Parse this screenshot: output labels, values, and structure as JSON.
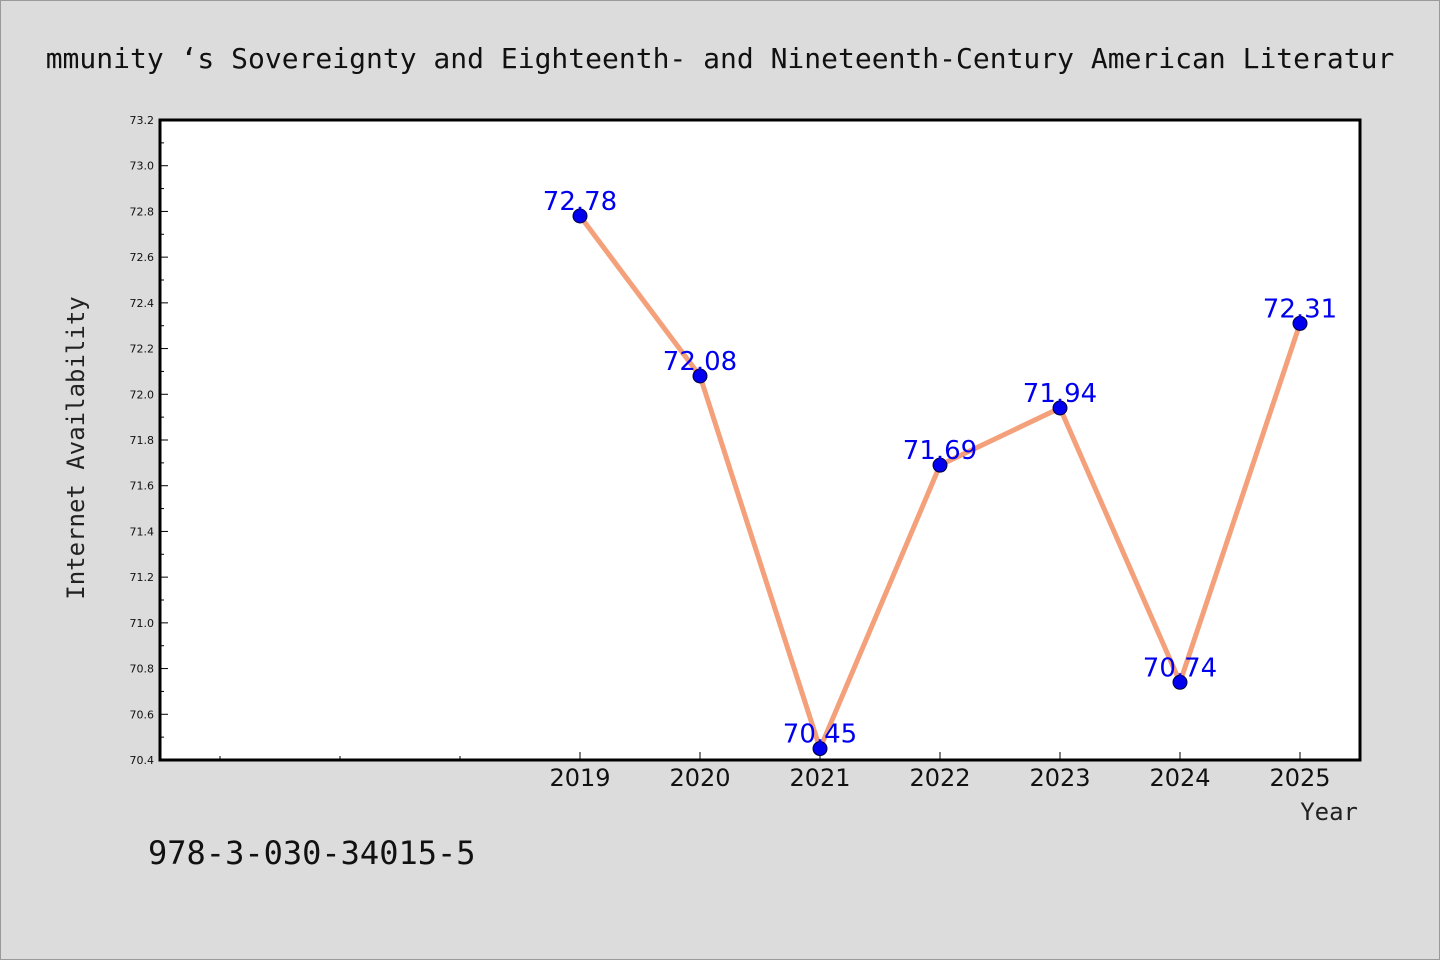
{
  "footer_text": "978-3-030-34015-5",
  "chart_data": {
    "type": "line",
    "title": "mmunity ‘s Sovereignty and Eighteenth- and Nineteenth-Century American Literatur",
    "xlabel": "Year",
    "ylabel": "Internet Availability",
    "x": [
      2019,
      2020,
      2021,
      2022,
      2023,
      2024,
      2025
    ],
    "series": [
      {
        "values": [
          72.78,
          72.08,
          70.45,
          71.69,
          71.94,
          70.74,
          72.31
        ]
      }
    ],
    "data_labels": [
      "72.78",
      "72.08",
      "70.45",
      "71.69",
      "71.94",
      "70.74",
      "72.31"
    ],
    "xticklabels": [
      "2019",
      "2020",
      "2021",
      "2022",
      "2023",
      "2024",
      "2025"
    ],
    "yticklabels": [
      "70.4",
      "70.6",
      "70.8",
      "71.0",
      "71.2",
      "71.4",
      "71.6",
      "71.8",
      "72.0",
      "72.2",
      "72.4",
      "72.6",
      "72.8",
      "73.0",
      "73.2"
    ],
    "ylim": [
      70.4,
      73.2
    ],
    "xlim": [
      2015.5,
      2025.5
    ],
    "grid": false,
    "colors": {
      "line": "#f4a07a",
      "marker": "#0000ee",
      "data_label": "#0000ee"
    }
  }
}
